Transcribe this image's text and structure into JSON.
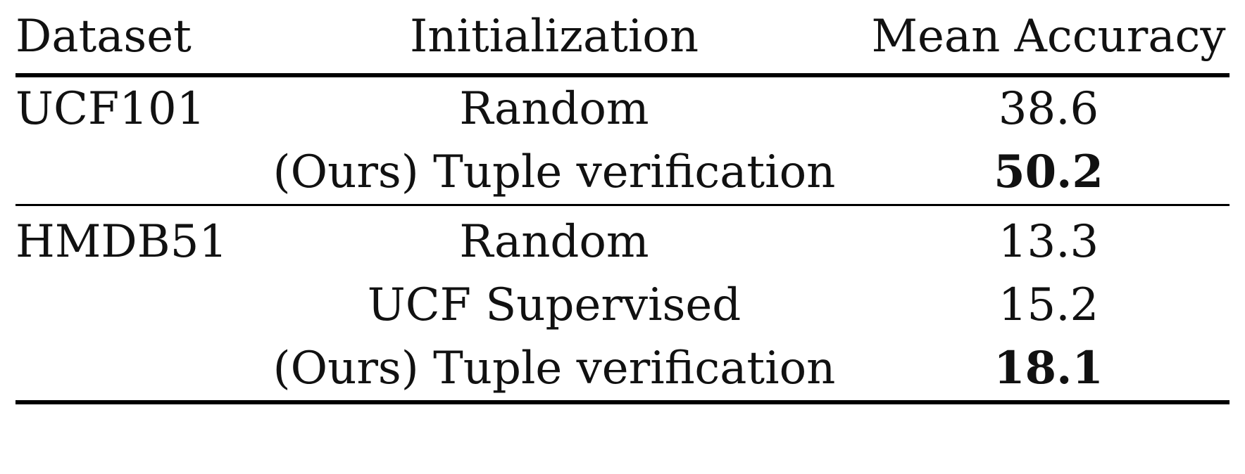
{
  "headers": {
    "dataset": "Dataset",
    "initialization": "Initialization",
    "mean_accuracy": "Mean Accuracy"
  },
  "groups": [
    {
      "dataset": "UCF101",
      "rows": [
        {
          "initialization": "Random",
          "accuracy": "38.6",
          "bold": false
        },
        {
          "initialization": "(Ours) Tuple verification",
          "accuracy": "50.2",
          "bold": true
        }
      ]
    },
    {
      "dataset": "HMDB51",
      "rows": [
        {
          "initialization": "Random",
          "accuracy": "13.3",
          "bold": false
        },
        {
          "initialization": "UCF Supervised",
          "accuracy": "15.2",
          "bold": false
        },
        {
          "initialization": "(Ours) Tuple verification",
          "accuracy": "18.1",
          "bold": true
        }
      ]
    }
  ]
}
